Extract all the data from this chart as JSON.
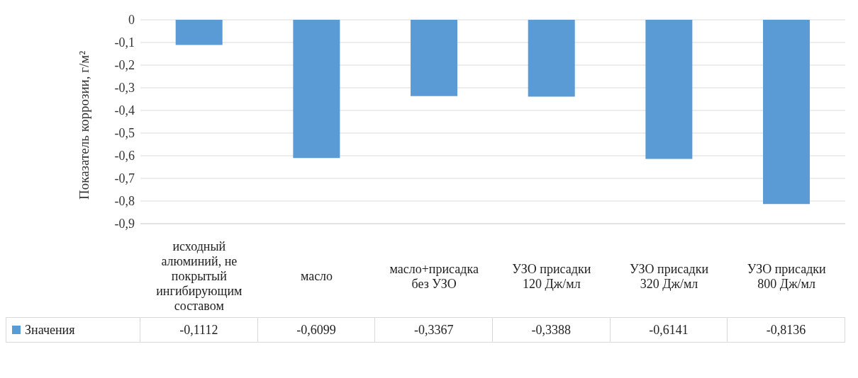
{
  "chart_data": {
    "type": "bar",
    "ylabel": "Показатель коррозии, г/м²",
    "categories": [
      "исходный алюминий, не покрытый ингибирующим составом",
      "масло",
      "масло+присадка без УЗО",
      "УЗО присадки 120 Дж/мл",
      "УЗО присадки 320 Дж/мл",
      "УЗО присадки 800 Дж/мл"
    ],
    "series": [
      {
        "name": "Значения",
        "color": "#5b9bd5",
        "values": [
          -0.1112,
          -0.6099,
          -0.3367,
          -0.3388,
          -0.6141,
          -0.8136
        ],
        "value_labels": [
          "-0,1112",
          "-0,6099",
          "-0,3367",
          "-0,3388",
          "-0,6141",
          "-0,8136"
        ]
      }
    ],
    "ylim": [
      -0.9,
      0
    ],
    "yticks": [
      {
        "value": 0,
        "label": "0"
      },
      {
        "value": -0.1,
        "label": "-0,1"
      },
      {
        "value": -0.2,
        "label": "-0,2"
      },
      {
        "value": -0.3,
        "label": "-0,3"
      },
      {
        "value": -0.4,
        "label": "-0,4"
      },
      {
        "value": -0.5,
        "label": "-0,5"
      },
      {
        "value": -0.6,
        "label": "-0,6"
      },
      {
        "value": -0.7,
        "label": "-0,7"
      },
      {
        "value": -0.8,
        "label": "-0,8"
      },
      {
        "value": -0.9,
        "label": "-0,9"
      }
    ],
    "grid": "y",
    "legend": "bottom"
  }
}
